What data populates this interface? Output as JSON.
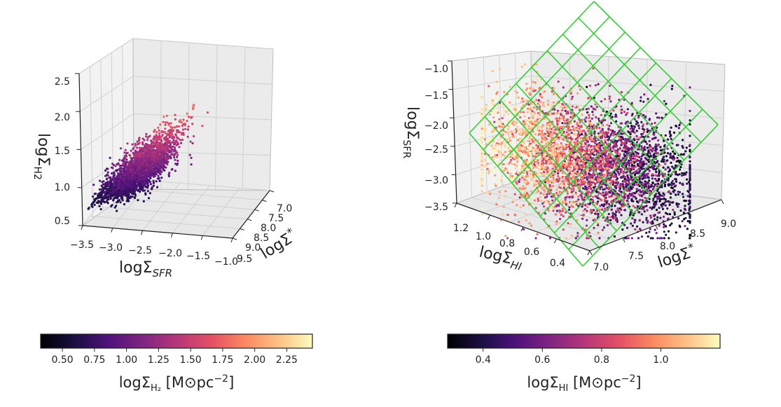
{
  "chart_data": [
    {
      "type": "scatter3d",
      "title": "",
      "xlabel": "logΣSFR",
      "xlabel_main": "logΣ",
      "xlabel_sub": "SFR",
      "ylabel": "logΣ*",
      "ylabel_main": "logΣ",
      "ylabel_sub": "*",
      "zlabel": "logΣH2",
      "zlabel_main": "logΣ",
      "zlabel_sub": "H2",
      "xlim": [
        -3.5,
        -1.0
      ],
      "ylim": [
        7.0,
        9.5
      ],
      "zlim": [
        0.5,
        2.5
      ],
      "xticks": [
        "−3.5",
        "−3.0",
        "−2.5",
        "−2.0",
        "−1.5",
        "−1.0"
      ],
      "yticks": [
        "7.0",
        "7.5",
        "8.0",
        "8.5",
        "9.0",
        "9.5"
      ],
      "zticks": [
        "0.5",
        "1.0",
        "1.5",
        "2.0",
        "2.5"
      ],
      "n_points": 2600,
      "trend": {
        "z_at_sfr_-3": 0.85,
        "slope_z_per_sfr": 0.7,
        "z_scatter": 0.15
      },
      "color_by": "logΣH2",
      "colormap": "magma",
      "colorbar": {
        "range": [
          0.33,
          2.45
        ],
        "ticks": [
          "0.50",
          "0.75",
          "1.00",
          "1.25",
          "1.50",
          "1.75",
          "2.00",
          "2.25"
        ],
        "tick_values": [
          0.5,
          0.75,
          1.0,
          1.25,
          1.5,
          1.75,
          2.0,
          2.25
        ],
        "label_main": "logΣ",
        "label_sub": "H₂",
        "label_unit": " [M⊙pc",
        "label_exp": "−2",
        "label_close": "]"
      }
    },
    {
      "type": "scatter3d",
      "title": "",
      "xlabel": "logΣHI",
      "xlabel_main": "logΣ",
      "xlabel_sub": "HI",
      "ylabel": "logΣ*",
      "ylabel_main": "logΣ",
      "ylabel_sub": "*",
      "zlabel": "logΣSFR",
      "zlabel_main": "logΣ",
      "zlabel_sub": "SFR",
      "xlim": [
        0.25,
        1.3
      ],
      "ylim": [
        7.0,
        9.0
      ],
      "zlim": [
        -3.5,
        -1.0
      ],
      "xticks": [
        "0.4",
        "0.6",
        "0.8",
        "1.0",
        "1.2"
      ],
      "yticks": [
        "7.0",
        "7.5",
        "8.0",
        "8.5",
        "9.0"
      ],
      "zticks": [
        "−3.5",
        "−3.0",
        "−2.5",
        "−2.0",
        "−1.5",
        "−1.0"
      ],
      "n_points": 4000,
      "plane": {
        "color": "#33cc33",
        "grid_lines_each_direction": 8
      },
      "color_by": "logΣHI",
      "colormap": "magma",
      "colorbar": {
        "range": [
          0.28,
          1.2
        ],
        "ticks": [
          "0.4",
          "0.6",
          "0.8",
          "1.0"
        ],
        "tick_values": [
          0.4,
          0.6,
          0.8,
          1.0
        ],
        "label_main": "logΣ",
        "label_sub": "HI",
        "label_unit": " [M⊙pc",
        "label_exp": "−2",
        "label_close": "]"
      }
    }
  ]
}
